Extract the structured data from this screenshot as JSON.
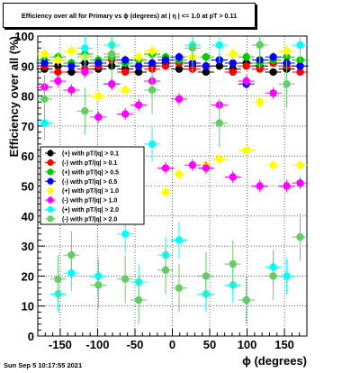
{
  "title": "Efficiency over all for Primary vs ϕ (degrees) at |  η | <= 1.0 at pT > 0.11",
  "footer": "Sun Sep  5 10:17:55 2021",
  "chart_data": {
    "type": "scatter",
    "xlabel": "ϕ (degrees)",
    "ylabel": "Efficiency over all (%)",
    "xlim": [
      -180,
      180
    ],
    "ylim": [
      0,
      100
    ],
    "xticks": [
      -150,
      -100,
      -50,
      0,
      50,
      100,
      150
    ],
    "yticks": [
      0,
      10,
      20,
      30,
      40,
      50,
      60,
      70,
      80,
      90,
      100
    ],
    "grid": true,
    "legend_position": "left-middle",
    "series": [
      {
        "name": "(+) with pT/|q| > 0.1",
        "color": "#000000",
        "x": [
          -171,
          -153,
          -135,
          -117,
          -99,
          -81,
          -63,
          -45,
          -27,
          -9,
          9,
          27,
          45,
          63,
          81,
          99,
          117,
          135,
          153,
          171
        ],
        "y": [
          89,
          90,
          88,
          91,
          89,
          90,
          89,
          88,
          90,
          91,
          89,
          90,
          88,
          90,
          89,
          91,
          90,
          88,
          89,
          90
        ],
        "err": 1
      },
      {
        "name": "(-) with pT/|q| > 0.1",
        "color": "#ff0000",
        "x": [
          -171,
          -153,
          -135,
          -117,
          -99,
          -81,
          -63,
          -45,
          -27,
          -9,
          9,
          27,
          45,
          63,
          81,
          99,
          117,
          135,
          153,
          171
        ],
        "y": [
          90,
          88,
          91,
          89,
          90,
          92,
          88,
          90,
          89,
          90,
          91,
          89,
          90,
          92,
          88,
          90,
          89,
          91,
          90,
          88
        ],
        "err": 1
      },
      {
        "name": "(+) with pT/|q| > 0.5",
        "color": "#00cc00",
        "x": [
          -171,
          -153,
          -135,
          -117,
          -99,
          -81,
          -63,
          -45,
          -27,
          -9,
          9,
          27,
          45,
          63,
          81,
          99,
          117,
          135,
          153,
          171
        ],
        "y": [
          92,
          93,
          91,
          94,
          92,
          93,
          91,
          92,
          94,
          93,
          92,
          91,
          93,
          92,
          94,
          93,
          91,
          92,
          93,
          92
        ],
        "err": 1.5
      },
      {
        "name": "(-) with pT/|q| > 0.5",
        "color": "#0000ff",
        "x": [
          -171,
          -153,
          -135,
          -117,
          -99,
          -81,
          -63,
          -45,
          -27,
          -9,
          9,
          27,
          45,
          63,
          81,
          99,
          117,
          135,
          153,
          171
        ],
        "y": [
          91,
          92,
          90,
          93,
          91,
          84,
          92,
          90,
          91,
          92,
          93,
          91,
          90,
          92,
          91,
          84,
          92,
          93,
          91,
          90
        ],
        "err": 1.5
      },
      {
        "name": "(+) with pT/|q| > 1.0",
        "color": "#ffff00",
        "x": [
          -171,
          -153,
          -135,
          -117,
          -99,
          -81,
          -63,
          -45,
          -27,
          -9,
          9,
          27,
          45,
          63,
          81,
          99,
          117,
          135,
          153,
          171
        ],
        "y": [
          94,
          92,
          95,
          93,
          80,
          94,
          82,
          93,
          95,
          48,
          54,
          93,
          57,
          59,
          94,
          62,
          78,
          57,
          95,
          57
        ],
        "err": 2
      },
      {
        "name": "(-) with pT/|q| > 1.0",
        "color": "#ff00ff",
        "x": [
          -171,
          -153,
          -135,
          -117,
          -99,
          -81,
          -63,
          -45,
          -27,
          -9,
          9,
          27,
          45,
          63,
          81,
          99,
          117,
          135,
          153,
          171
        ],
        "y": [
          83,
          85,
          82,
          88,
          73,
          84,
          74,
          77,
          85,
          56,
          79,
          57,
          56,
          77,
          53,
          85,
          50,
          81,
          50,
          51
        ],
        "err": 2
      },
      {
        "name": "(+) with pT/|q| > 2.0",
        "color": "#00ffff",
        "x": [
          -171,
          -153,
          -135,
          -117,
          -99,
          -81,
          -63,
          -45,
          -27,
          -9,
          9,
          27,
          45,
          63,
          81,
          99,
          117,
          135,
          153,
          171
        ],
        "y": [
          71,
          14,
          21,
          96,
          20,
          97,
          34,
          18,
          64,
          27,
          32,
          97,
          14,
          97,
          17,
          12,
          97,
          23,
          20,
          97
        ],
        "err": 6
      },
      {
        "name": "(-) with pT/|q| > 2.0",
        "color": "#66cc66",
        "x": [
          -171,
          -153,
          -135,
          -117,
          -99,
          -81,
          -63,
          -45,
          -27,
          -9,
          9,
          27,
          45,
          63,
          81,
          99,
          117,
          135,
          153,
          171
        ],
        "y": [
          79,
          19,
          27,
          75,
          17,
          94,
          19,
          12,
          82,
          22,
          16,
          96,
          20,
          71,
          24,
          12,
          97,
          20,
          84,
          33
        ],
        "err": 8
      }
    ]
  }
}
